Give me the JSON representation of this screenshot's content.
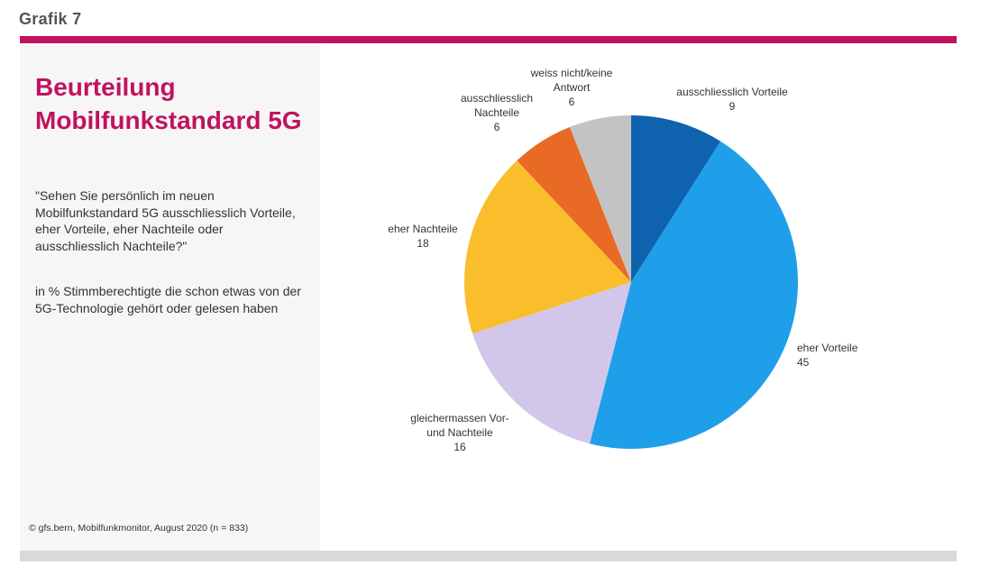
{
  "figure_label": "Grafik 7",
  "title": "Beurteilung Mobilfunkstandard 5G",
  "question": "\"Sehen Sie persönlich im neuen Mobilfunkstandard 5G ausschliesslich Vorteile, eher Vorteile, eher Nachteile oder ausschliesslich Nachteile?\"",
  "basis": "in % Stimmberechtigte die schon etwas von der 5G-Technologie gehört oder gelesen haben",
  "source": "© gfs.bern, Mobilfunkmonitor, August 2020 (n = 833)",
  "colors": {
    "accent": "#c0135f",
    "panel": "#f6f6f6",
    "bottom_bar": "#d9d9d9"
  },
  "chart_data": {
    "type": "pie",
    "start": "12 o'clock, clockwise",
    "slices": [
      {
        "label": [
          "ausschliesslich Vorteile"
        ],
        "value": 9,
        "color": "#0f62ae"
      },
      {
        "label": [
          "eher Vorteile"
        ],
        "value": 45,
        "color": "#1f9fea"
      },
      {
        "label": [
          "gleichermassen Vor-",
          "und Nachteile"
        ],
        "value": 16,
        "color": "#d2c7ea"
      },
      {
        "label": [
          "eher Nachteile"
        ],
        "value": 18,
        "color": "#fabd2b"
      },
      {
        "label": [
          "ausschliesslich",
          "Nachteile"
        ],
        "value": 6,
        "color": "#e96a24"
      },
      {
        "label": [
          "weiss nicht/keine",
          "Antwort"
        ],
        "value": 6,
        "color": "#c3c3c3"
      }
    ]
  }
}
